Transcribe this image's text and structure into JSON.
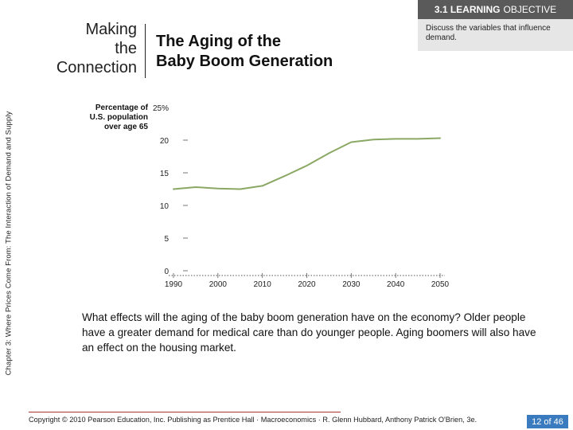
{
  "sidebar": {
    "chapter_label": "Chapter 3: Where Prices Come From: The Interaction of Demand and Supply"
  },
  "learning_objective": {
    "badge_bold": "3.1 LEARNING",
    "badge_rest": "OBJECTIVE",
    "text": "Discuss the variables that influence demand."
  },
  "feature": {
    "line1": "Making",
    "line2": "the",
    "line3": "Connection"
  },
  "header": {
    "title_line1": "The Aging of the",
    "title_line2": "Baby Boom Generation"
  },
  "chart_data": {
    "type": "line",
    "title": "",
    "ylabel": "Percentage of U.S. population over age 65",
    "xlabel": "",
    "x_ticks": [
      1990,
      2000,
      2010,
      2020,
      2030,
      2040,
      2050
    ],
    "y_ticks": [
      0,
      5,
      10,
      15,
      20
    ],
    "y_tick_labels": [
      "0",
      "5",
      "10",
      "15",
      "20"
    ],
    "y_top_label": "25%",
    "xlim": [
      1990,
      2050
    ],
    "ylim": [
      0,
      25
    ],
    "series": [
      {
        "name": "Percentage of U.S. population over age 65",
        "color": "#8aa864",
        "x": [
          1990,
          1995,
          2000,
          2005,
          2010,
          2015,
          2020,
          2025,
          2030,
          2035,
          2040,
          2045,
          2050
        ],
        "y": [
          12.5,
          12.8,
          12.6,
          12.5,
          13.0,
          14.5,
          16.1,
          18.0,
          19.7,
          20.1,
          20.2,
          20.2,
          20.3
        ]
      }
    ]
  },
  "caption": {
    "text": "What effects will the aging of the baby boom generation have on the economy? Older people have a greater demand for medical care than do younger people. Aging boomers will also have an effect on the housing market."
  },
  "footer": {
    "copyright": "Copyright © 2010 Pearson Education, Inc. Publishing as Prentice Hall · Macroeconomics · R. Glenn Hubbard, Anthony Patrick O'Brien, 3e.",
    "page": "12 of 46"
  }
}
